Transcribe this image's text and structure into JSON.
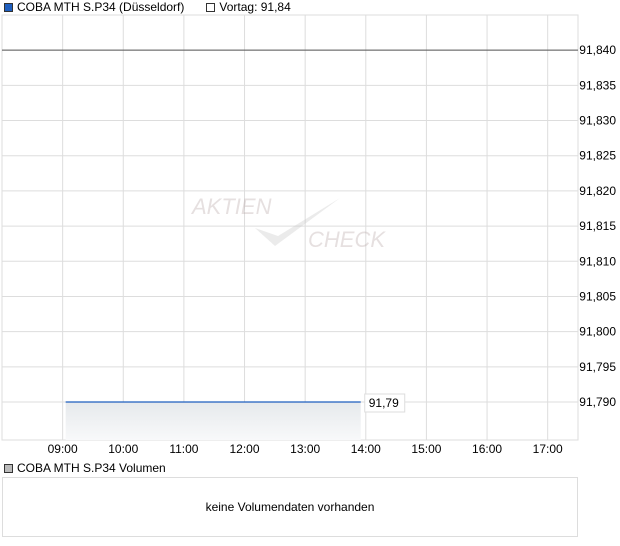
{
  "legend": {
    "series": "COBA MTH S.P34 (Düsseldorf)",
    "series_color": "#1f5fbf",
    "prev": "Vortag: 91,84"
  },
  "watermark": "AKTIEN CHECK",
  "chart_data": {
    "type": "area",
    "xlim": [
      "08:00",
      "17:30"
    ],
    "ylim": [
      91.7846,
      91.845
    ],
    "x_ticks": [
      "09:00",
      "10:00",
      "11:00",
      "12:00",
      "13:00",
      "14:00",
      "15:00",
      "16:00",
      "17:00"
    ],
    "y_ticks": [
      "91,840",
      "91,835",
      "91,830",
      "91,825",
      "91,820",
      "91,815",
      "91,810",
      "91,805",
      "91,800",
      "91,795",
      "91,790"
    ],
    "y_tick_values": [
      91.84,
      91.835,
      91.83,
      91.825,
      91.82,
      91.815,
      91.81,
      91.805,
      91.8,
      91.795,
      91.79
    ],
    "series": [
      {
        "name": "COBA MTH S.P34 (Düsseldorf)",
        "color": "#1f5fbf",
        "points": [
          [
            "09:03",
            91.79
          ],
          [
            "13:55",
            91.79
          ]
        ]
      }
    ],
    "reference_line": {
      "name": "Vortag",
      "value": 91.84,
      "color": "#555555"
    },
    "last_label": "91,79",
    "grid": true
  },
  "volume": {
    "legend": "COBA MTH S.P34 Volumen",
    "message": "keine Volumendaten vorhanden"
  }
}
